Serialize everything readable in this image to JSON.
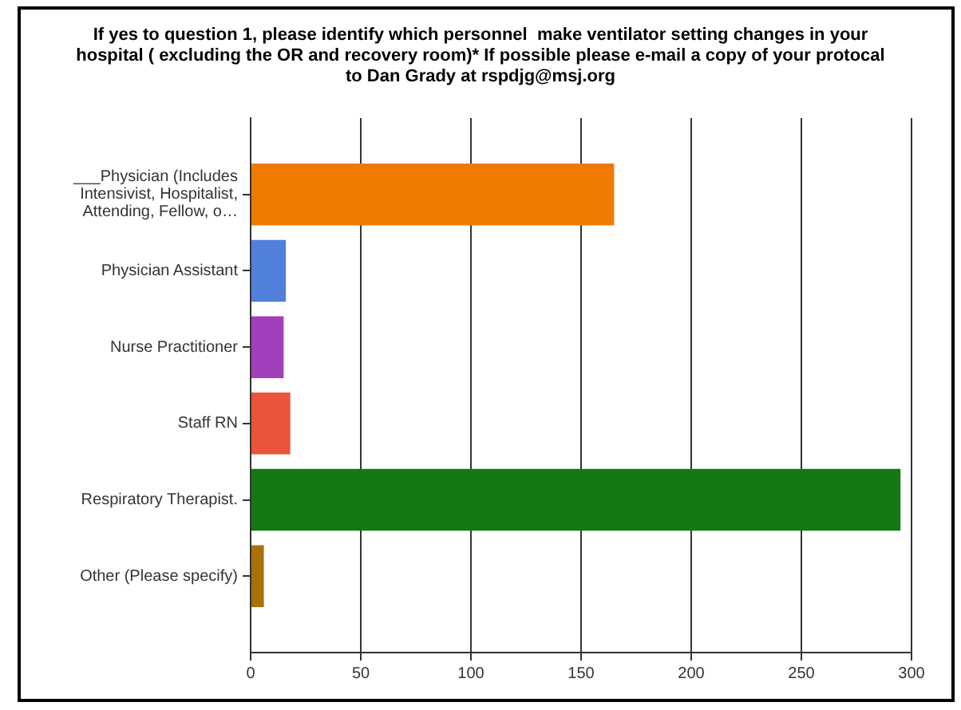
{
  "chart_data": {
    "type": "bar",
    "orientation": "horizontal",
    "title": "If yes to question 1, please identify which personnel  make ventilator setting changes in your hospital ( excluding the OR and recovery room)* If possible please e-mail a copy of your protocal to Dan Grady at rspdjg@msj.org",
    "categories": [
      "___Physician (Includes Intensivist, Hospitalist, Attending, Fellow, o…",
      "Physician Assistant",
      "Nurse Practitioner",
      "Staff RN",
      "Respiratory Therapist.",
      "Other (Please specify)"
    ],
    "values": [
      165,
      16,
      15,
      18,
      295,
      6
    ],
    "colors": [
      "#f07a00",
      "#5180dc",
      "#a23fbc",
      "#e8553a",
      "#147814",
      "#a87208"
    ],
    "xlim": [
      0,
      300
    ],
    "xticks": [
      0,
      50,
      100,
      150,
      200,
      250,
      300
    ],
    "grid": "x"
  }
}
